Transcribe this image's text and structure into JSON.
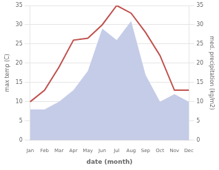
{
  "chart_data": {
    "type": "line",
    "xlabel": "date (month)",
    "ylabel": "max temp (C)",
    "y2label": "med. precipitation (kg/m2)",
    "categories": [
      "Jan",
      "Feb",
      "Mar",
      "Apr",
      "May",
      "Jun",
      "Jul",
      "Aug",
      "Sep",
      "Oct",
      "Nov",
      "Dec"
    ],
    "series": [
      {
        "type": "line",
        "color": "#c0504d",
        "values": [
          10,
          13,
          19,
          26,
          26.5,
          30,
          35,
          33,
          28,
          22,
          13,
          13
        ]
      },
      {
        "type": "area",
        "color": "#c5cce8",
        "axis": "y2",
        "values": [
          8,
          8,
          10,
          13,
          18,
          29,
          26,
          31,
          17,
          10,
          12,
          10
        ]
      }
    ],
    "ylim": [
      0,
      35
    ],
    "yticks": [
      0,
      5,
      10,
      15,
      20,
      25,
      30,
      35
    ],
    "y2lim": [
      0,
      35
    ],
    "y2ticks": [
      0,
      5,
      10,
      15,
      20,
      25,
      30,
      35
    ],
    "grid": true,
    "legend": false
  }
}
